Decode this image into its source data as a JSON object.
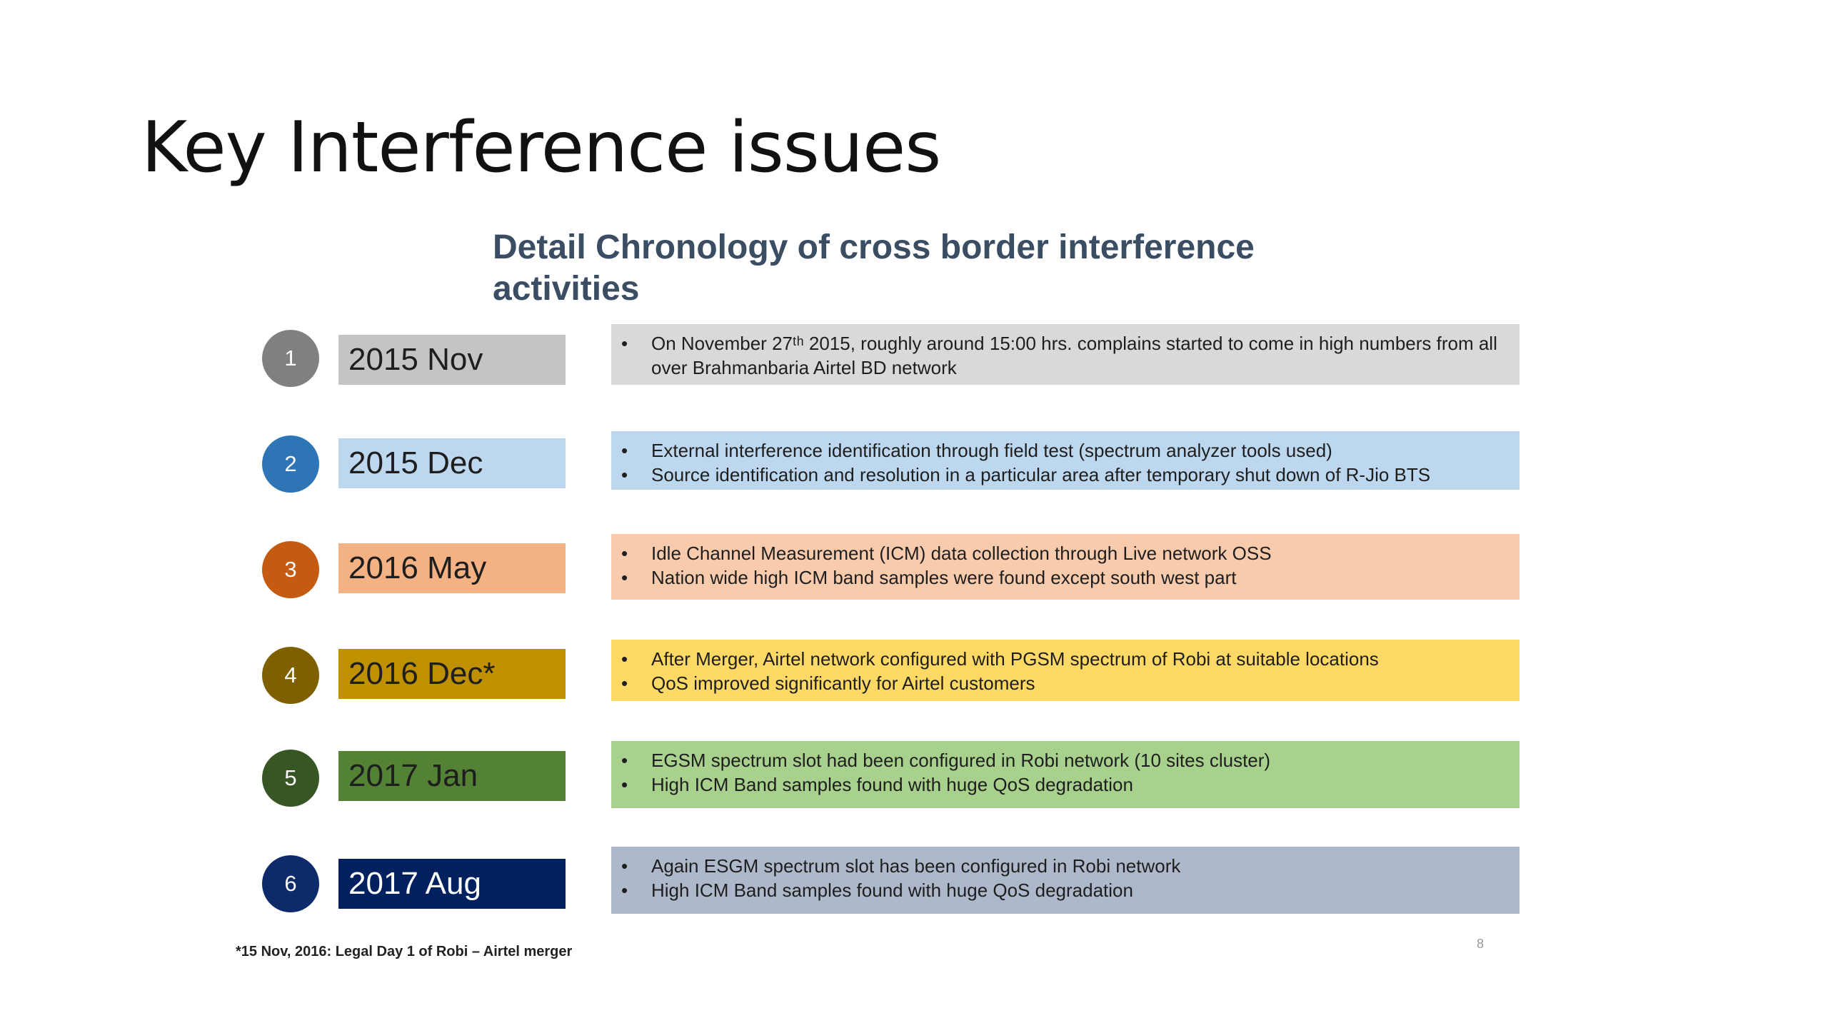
{
  "slide": {
    "title": "Key Interference issues",
    "subtitle": "Detail Chronology of cross border interference activities",
    "footnote": "*15 Nov, 2016: Legal Day 1 of Robi – Airtel merger",
    "page_number": "8"
  },
  "timeline": [
    {
      "num": "1",
      "date": "2015 Nov",
      "colors": {
        "circle": "#808080",
        "date_bg": "#c4c4c4",
        "date_text": "#1e1e1e",
        "detail_bg": "#d9d9d9"
      },
      "details": [
        "On November 27ᵗʰ 2015, roughly around 15:00 hrs. complains started to come in high numbers from all over Brahmanbaria Airtel BD network"
      ]
    },
    {
      "num": "2",
      "date": "2015 Dec",
      "colors": {
        "circle": "#2e75b6",
        "date_bg": "#bdd7ee",
        "date_text": "#1e1e1e",
        "detail_bg": "#bdd7ee"
      },
      "details": [
        "External interference identification through field test (spectrum analyzer tools used)",
        "Source identification and resolution in a particular area after temporary shut down of R-Jio BTS"
      ]
    },
    {
      "num": "3",
      "date": "2016 May",
      "colors": {
        "circle": "#c55a11",
        "date_bg": "#f4b183",
        "date_text": "#1e1e1e",
        "detail_bg": "#f8cbad"
      },
      "details": [
        "Idle Channel Measurement (ICM) data collection through Live network OSS",
        "Nation wide high ICM band samples were found except south west part"
      ]
    },
    {
      "num": "4",
      "date": "2016 Dec*",
      "colors": {
        "circle": "#7f6000",
        "date_bg": "#bf9000",
        "date_text": "#1e1e1e",
        "detail_bg": "#ffd966"
      },
      "details": [
        "After Merger, Airtel network configured with PGSM spectrum of Robi at suitable locations",
        "QoS improved significantly for Airtel customers"
      ]
    },
    {
      "num": "5",
      "date": "2017 Jan",
      "colors": {
        "circle": "#375623",
        "date_bg": "#548235",
        "date_text": "#1e1e1e",
        "detail_bg": "#a9d18e"
      },
      "details": [
        "EGSM spectrum slot had been configured in Robi network (10 sites cluster)",
        "High ICM Band samples found with huge QoS degradation"
      ]
    },
    {
      "num": "6",
      "date": "2017 Aug",
      "colors": {
        "circle": "#0d2a6b",
        "date_bg": "#002060",
        "date_text": "#ffffff",
        "detail_bg": "#adb9ca"
      },
      "details": [
        "Again ESGM spectrum slot has been configured in Robi network",
        "High ICM Band samples found with huge QoS degradation"
      ]
    }
  ],
  "bullet_char": "•"
}
